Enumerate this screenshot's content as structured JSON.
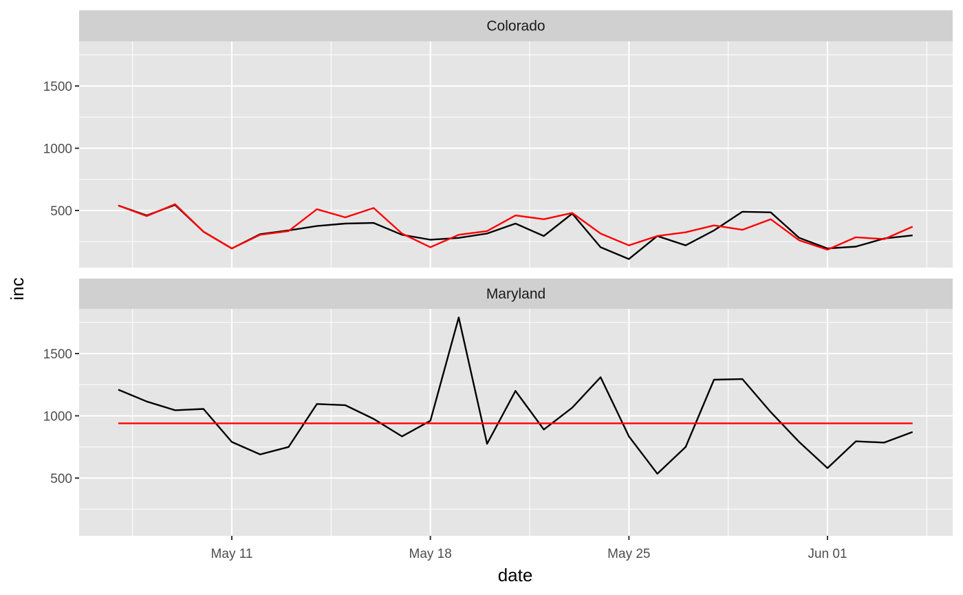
{
  "chart_data": {
    "type": "line",
    "xlabel": "date",
    "ylabel": "inc",
    "x_ticks": [
      "May 11",
      "May 18",
      "May 25",
      "Jun 01"
    ],
    "y_ticks": [
      500,
      1000,
      1500
    ],
    "dates": [
      "2020-05-07",
      "2020-05-08",
      "2020-05-09",
      "2020-05-10",
      "2020-05-11",
      "2020-05-12",
      "2020-05-13",
      "2020-05-14",
      "2020-05-15",
      "2020-05-16",
      "2020-05-17",
      "2020-05-18",
      "2020-05-19",
      "2020-05-20",
      "2020-05-21",
      "2020-05-22",
      "2020-05-23",
      "2020-05-24",
      "2020-05-25",
      "2020-05-26",
      "2020-05-27",
      "2020-05-28",
      "2020-05-29",
      "2020-05-30",
      "2020-05-31",
      "2020-06-01",
      "2020-06-02",
      "2020-06-03",
      "2020-06-04"
    ],
    "facets": [
      {
        "label": "Colorado",
        "series": [
          {
            "color": "#000000",
            "values": [
              540,
              460,
              545,
              330,
              195,
              310,
              340,
              375,
              395,
              400,
              305,
              265,
              280,
              315,
              395,
              295,
              475,
              205,
              110,
              295,
              220,
              340,
              490,
              485,
              280,
              195,
              210,
              275,
              300
            ]
          },
          {
            "color": "#ff0000",
            "values": [
              540,
              455,
              550,
              330,
              195,
              305,
              335,
              510,
              445,
              520,
              315,
              205,
              305,
              335,
              460,
              430,
              480,
              315,
              220,
              295,
              325,
              380,
              345,
              430,
              260,
              185,
              285,
              270,
              370
            ]
          }
        ]
      },
      {
        "label": "Maryland",
        "series": [
          {
            "color": "#000000",
            "values": [
              1210,
              1115,
              1045,
              1055,
              790,
              690,
              750,
              1095,
              1085,
              975,
              835,
              960,
              1790,
              775,
              1200,
              890,
              1065,
              1310,
              835,
              535,
              750,
              1290,
              1295,
              1030,
              790,
              580,
              795,
              785,
              870
            ]
          },
          {
            "color": "#ff0000",
            "values": [
              940,
              940,
              940,
              940,
              940,
              940,
              940,
              940,
              940,
              940,
              940,
              940,
              940,
              940,
              940,
              940,
              940,
              940,
              940,
              940,
              940,
              940,
              940,
              940,
              940,
              940,
              940,
              940,
              940
            ]
          }
        ]
      }
    ]
  }
}
